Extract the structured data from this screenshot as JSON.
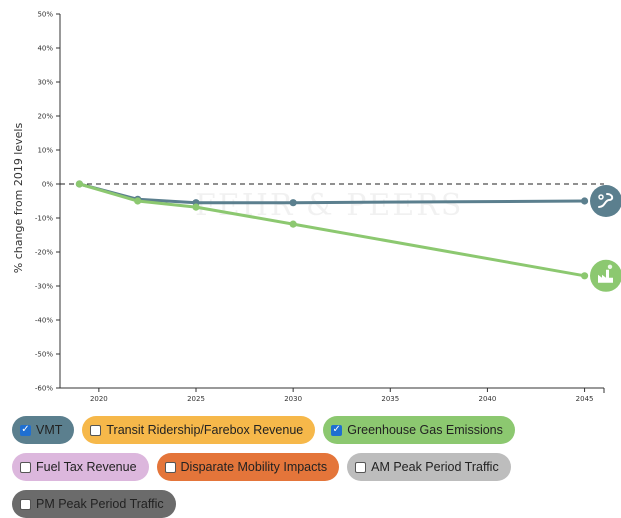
{
  "chart_data": {
    "type": "line",
    "ylabel": "% change from 2019 levels",
    "xlabel": "",
    "xlim": [
      2018,
      2046
    ],
    "ylim": [
      -60,
      50
    ],
    "x_ticks": [
      2020,
      2025,
      2030,
      2035,
      2040,
      2045
    ],
    "y_ticks": [
      50,
      40,
      30,
      20,
      10,
      0,
      -10,
      -20,
      -30,
      -40,
      -50,
      -60
    ],
    "baseline": 0,
    "watermark": "FEHR & PEERS",
    "series": [
      {
        "name": "VMT",
        "color": "#5b7f8e",
        "icon": "road-icon",
        "points": [
          [
            2019,
            0
          ],
          [
            2022,
            -4.5
          ],
          [
            2025,
            -5.5
          ],
          [
            2030,
            -5.5
          ],
          [
            2045,
            -5
          ]
        ]
      },
      {
        "name": "Greenhouse Gas Emissions",
        "color": "#8cc870",
        "icon": "factory-icon",
        "points": [
          [
            2019,
            0
          ],
          [
            2022,
            -5
          ],
          [
            2025,
            -6.8
          ],
          [
            2030,
            -11.8
          ],
          [
            2045,
            -27
          ]
        ]
      }
    ]
  },
  "legend": {
    "rows": [
      [
        {
          "label": "VMT",
          "checked": true,
          "color": "#5b7f8e",
          "name": "legend-vmt-toggle"
        },
        {
          "label": "Transit Ridership/Farebox Revenue",
          "checked": false,
          "color": "#f6b84a",
          "name": "legend-transit-toggle"
        },
        {
          "label": "Greenhouse Gas Emissions",
          "checked": true,
          "color": "#8cc870",
          "name": "legend-ghg-toggle"
        }
      ],
      [
        {
          "label": "Fuel Tax Revenue",
          "checked": false,
          "color": "#dcb7dd",
          "name": "legend-fuel-tax-toggle"
        },
        {
          "label": "Disparate Mobility Impacts",
          "checked": false,
          "color": "#e4753a",
          "name": "legend-mobility-toggle"
        },
        {
          "label": "AM Peak Period Traffic",
          "checked": false,
          "color": "#bdbdbd",
          "name": "legend-am-peak-toggle"
        }
      ],
      [
        {
          "label": "PM Peak Period Traffic",
          "checked": false,
          "color": "#6b6b6b",
          "name": "legend-pm-peak-toggle"
        }
      ]
    ]
  }
}
